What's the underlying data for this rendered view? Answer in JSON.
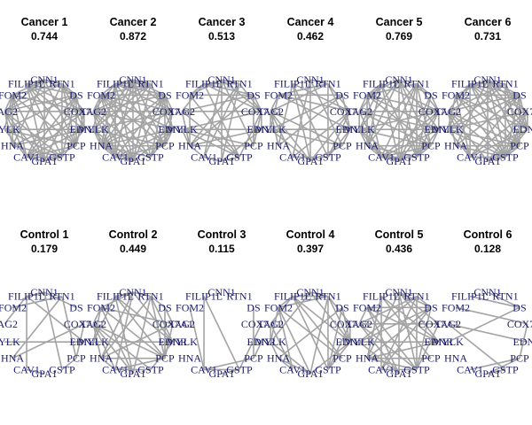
{
  "genes": [
    "CNN1",
    "RTN1",
    "DS",
    "COX7A1",
    "EDNR",
    "PCP",
    "GSTP",
    "GPA1",
    "CAV1",
    "HNA",
    "MYLK",
    "TAG2",
    "FOM2",
    "FILIP1L"
  ],
  "panels": [
    {
      "title": "Cancer 1",
      "score": "0.744",
      "density": 0.744
    },
    {
      "title": "Cancer 2",
      "score": "0.872",
      "density": 0.872
    },
    {
      "title": "Cancer 3",
      "score": "0.513",
      "density": 0.513
    },
    {
      "title": "Cancer 4",
      "score": "0.462",
      "density": 0.462
    },
    {
      "title": "Cancer 5",
      "score": "0.769",
      "density": 0.769
    },
    {
      "title": "Cancer 6",
      "score": "0.731",
      "density": 0.731
    },
    {
      "title": "Control 1",
      "score": "0.179",
      "density": 0.179
    },
    {
      "title": "Control 2",
      "score": "0.449",
      "density": 0.449
    },
    {
      "title": "Control 3",
      "score": "0.115",
      "density": 0.115
    },
    {
      "title": "Control 4",
      "score": "0.397",
      "density": 0.397
    },
    {
      "title": "Control 5",
      "score": "0.436",
      "density": 0.436
    },
    {
      "title": "Control 6",
      "score": "0.128",
      "density": 0.128
    }
  ],
  "colors": {
    "edge": "#a3a3a3",
    "label": "#1a1a6e"
  }
}
